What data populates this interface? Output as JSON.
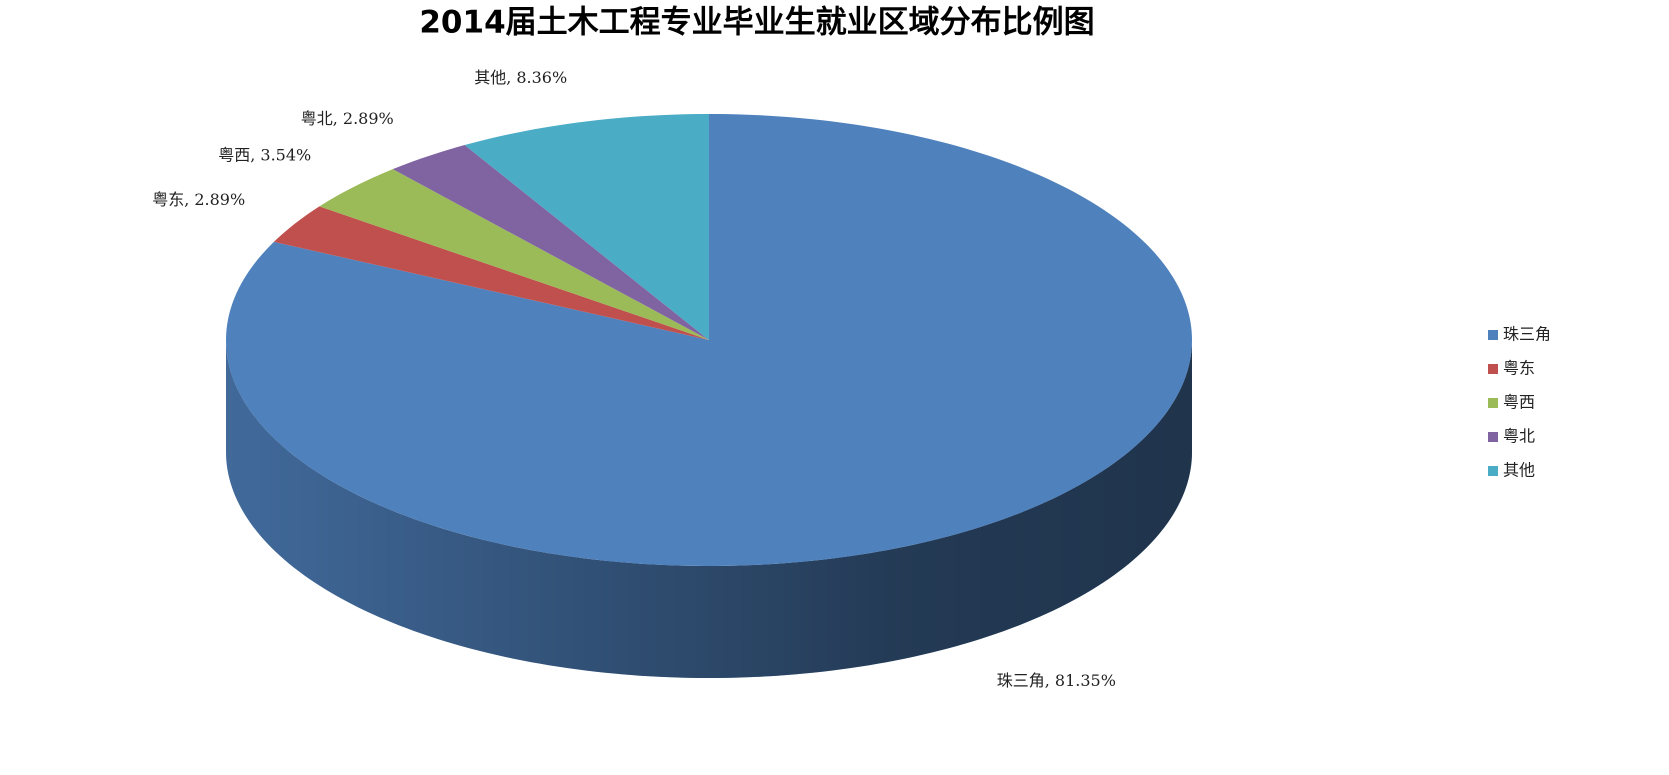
{
  "chart_data": {
    "type": "pie",
    "title": "2014届土木工程专业毕业生就业区域分布比例图",
    "categories": [
      "珠三角",
      "粤东",
      "粤西",
      "粤北",
      "其他"
    ],
    "values": [
      81.35,
      2.89,
      3.54,
      2.89,
      8.36
    ],
    "value_labels": [
      "珠三角, 81.35%",
      "粤东, 2.89%",
      "粤西, 3.54%",
      "粤北, 2.89%",
      "其他, 8.36%"
    ],
    "colors": [
      "#4f81bd",
      "#c0504d",
      "#9bbb59",
      "#8064a2",
      "#4bacc6"
    ],
    "legend": "right"
  }
}
